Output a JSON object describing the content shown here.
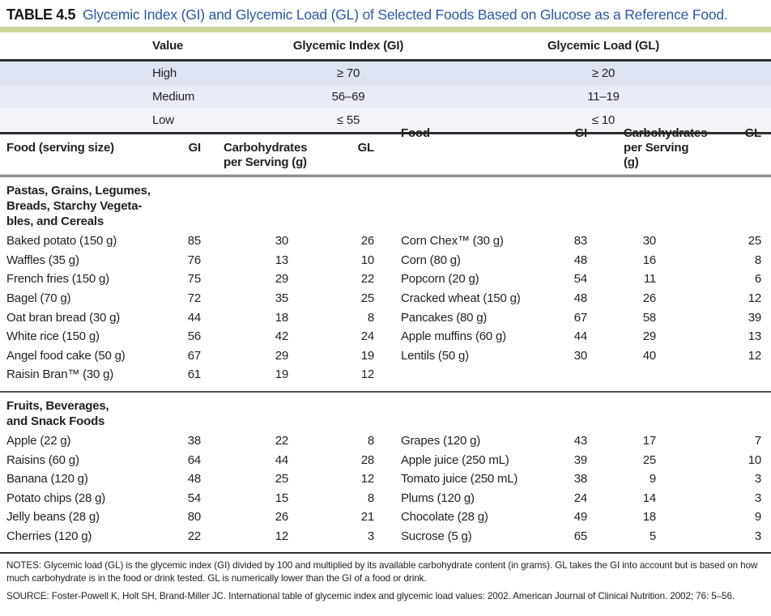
{
  "caption": {
    "label": "TABLE 4.5",
    "title": "Glycemic Index (GI) and Glycemic Load (GL) of Selected Foods Based on Glucose as a Reference Food."
  },
  "colors": {
    "accent_green": "#cbd69c",
    "title_blue": "#2d57a7",
    "band_high": "#dde3f1",
    "band_medium": "#e9ecf7",
    "band_low": "#f4f5fb"
  },
  "key_table": {
    "headers": [
      "Value",
      "Glycemic Index (GI)",
      "Glycemic Load (GL)"
    ],
    "rows": [
      {
        "value": "High",
        "gi": "≥ 70",
        "gl": "≥ 20"
      },
      {
        "value": "Medium",
        "gi": "56–69",
        "gl": "11–19"
      },
      {
        "value": "Low",
        "gi": "≤ 55",
        "gl": "≤ 10"
      }
    ]
  },
  "main_table": {
    "left_headers": {
      "food": "Food (serving size)",
      "gi": "GI",
      "carbs": "Carbohydrates\nper Serving (g)",
      "gl": "GL"
    },
    "right_headers": {
      "food": "Food",
      "gi": "GI",
      "carbs": "Carbohydrates\nper Serving (g)",
      "gl": "GL"
    },
    "sections": [
      {
        "title": "Pastas, Grains, Legumes,\nBreads, Starchy Vegeta-\nbles, and Cereals",
        "rows": [
          {
            "left": {
              "food": "Baked potato (150 g)",
              "gi": "85",
              "carbs": "30",
              "gl": "26"
            },
            "right": {
              "food": "Corn Chex™ (30 g)",
              "gi": "83",
              "carbs": "30",
              "gl": "25"
            }
          },
          {
            "left": {
              "food": "Waffles (35 g)",
              "gi": "76",
              "carbs": "13",
              "gl": "10"
            },
            "right": {
              "food": "Corn (80 g)",
              "gi": "48",
              "carbs": "16",
              "gl": "8"
            }
          },
          {
            "left": {
              "food": "French fries (150 g)",
              "gi": "75",
              "carbs": "29",
              "gl": "22"
            },
            "right": {
              "food": "Popcorn (20 g)",
              "gi": "54",
              "carbs": "11",
              "gl": "6"
            }
          },
          {
            "left": {
              "food": "Bagel (70 g)",
              "gi": "72",
              "carbs": "35",
              "gl": "25"
            },
            "right": {
              "food": "Cracked wheat (150 g)",
              "gi": "48",
              "carbs": "26",
              "gl": "12"
            }
          },
          {
            "left": {
              "food": "Oat bran bread (30 g)",
              "gi": "44",
              "carbs": "18",
              "gl": "8"
            },
            "right": {
              "food": "Pancakes (80 g)",
              "gi": "67",
              "carbs": "58",
              "gl": "39"
            }
          },
          {
            "left": {
              "food": "White rice (150 g)",
              "gi": "56",
              "carbs": "42",
              "gl": "24"
            },
            "right": {
              "food": "Apple muffins (60 g)",
              "gi": "44",
              "carbs": "29",
              "gl": "13"
            }
          },
          {
            "left": {
              "food": "Angel food cake (50 g)",
              "gi": "67",
              "carbs": "29",
              "gl": "19"
            },
            "right": {
              "food": "Lentils (50 g)",
              "gi": "30",
              "carbs": "40",
              "gl": "12"
            }
          },
          {
            "left": {
              "food": "Raisin Bran™ (30 g)",
              "gi": "61",
              "carbs": "19",
              "gl": "12"
            },
            "right": null
          }
        ]
      },
      {
        "title": "Fruits, Beverages,\nand Snack Foods",
        "rows": [
          {
            "left": {
              "food": "Apple (22 g)",
              "gi": "38",
              "carbs": "22",
              "gl": "8"
            },
            "right": {
              "food": "Grapes (120 g)",
              "gi": "43",
              "carbs": "17",
              "gl": "7"
            }
          },
          {
            "left": {
              "food": "Raisins (60 g)",
              "gi": "64",
              "carbs": "44",
              "gl": "28"
            },
            "right": {
              "food": "Apple juice (250 mL)",
              "gi": "39",
              "carbs": "25",
              "gl": "10"
            }
          },
          {
            "left": {
              "food": "Banana (120 g)",
              "gi": "48",
              "carbs": "25",
              "gl": "12"
            },
            "right": {
              "food": "Tomato juice (250 mL)",
              "gi": "38",
              "carbs": "9",
              "gl": "3"
            }
          },
          {
            "left": {
              "food": "Potato chips (28 g)",
              "gi": "54",
              "carbs": "15",
              "gl": "8"
            },
            "right": {
              "food": "Plums (120 g)",
              "gi": "24",
              "carbs": "14",
              "gl": "3"
            }
          },
          {
            "left": {
              "food": "Jelly beans (28 g)",
              "gi": "80",
              "carbs": "26",
              "gl": "21"
            },
            "right": {
              "food": "Chocolate (28 g)",
              "gi": "49",
              "carbs": "18",
              "gl": "9"
            }
          },
          {
            "left": {
              "food": "Cherries (120 g)",
              "gi": "22",
              "carbs": "12",
              "gl": "3"
            },
            "right": {
              "food": "Sucrose (5 g)",
              "gi": "65",
              "carbs": "5",
              "gl": "3"
            }
          }
        ]
      }
    ]
  },
  "footer": {
    "notes": "NOTES: Glycemic load (GL) is the glycemic index (GI) divided by 100 and multiplied by its available carbohydrate content (in grams). GL takes the GI into account but is based on how much carbohydrate is in the food or drink tested. GL is numerically lower than the GI of a food or drink.",
    "source": "SOURCE: Foster-Powell K, Holt SH, Brand-Miller JC. International table of glycemic index and glycemic load values: 2002. American Journal of Clinical Nutrition. 2002; 76: 5–56."
  }
}
